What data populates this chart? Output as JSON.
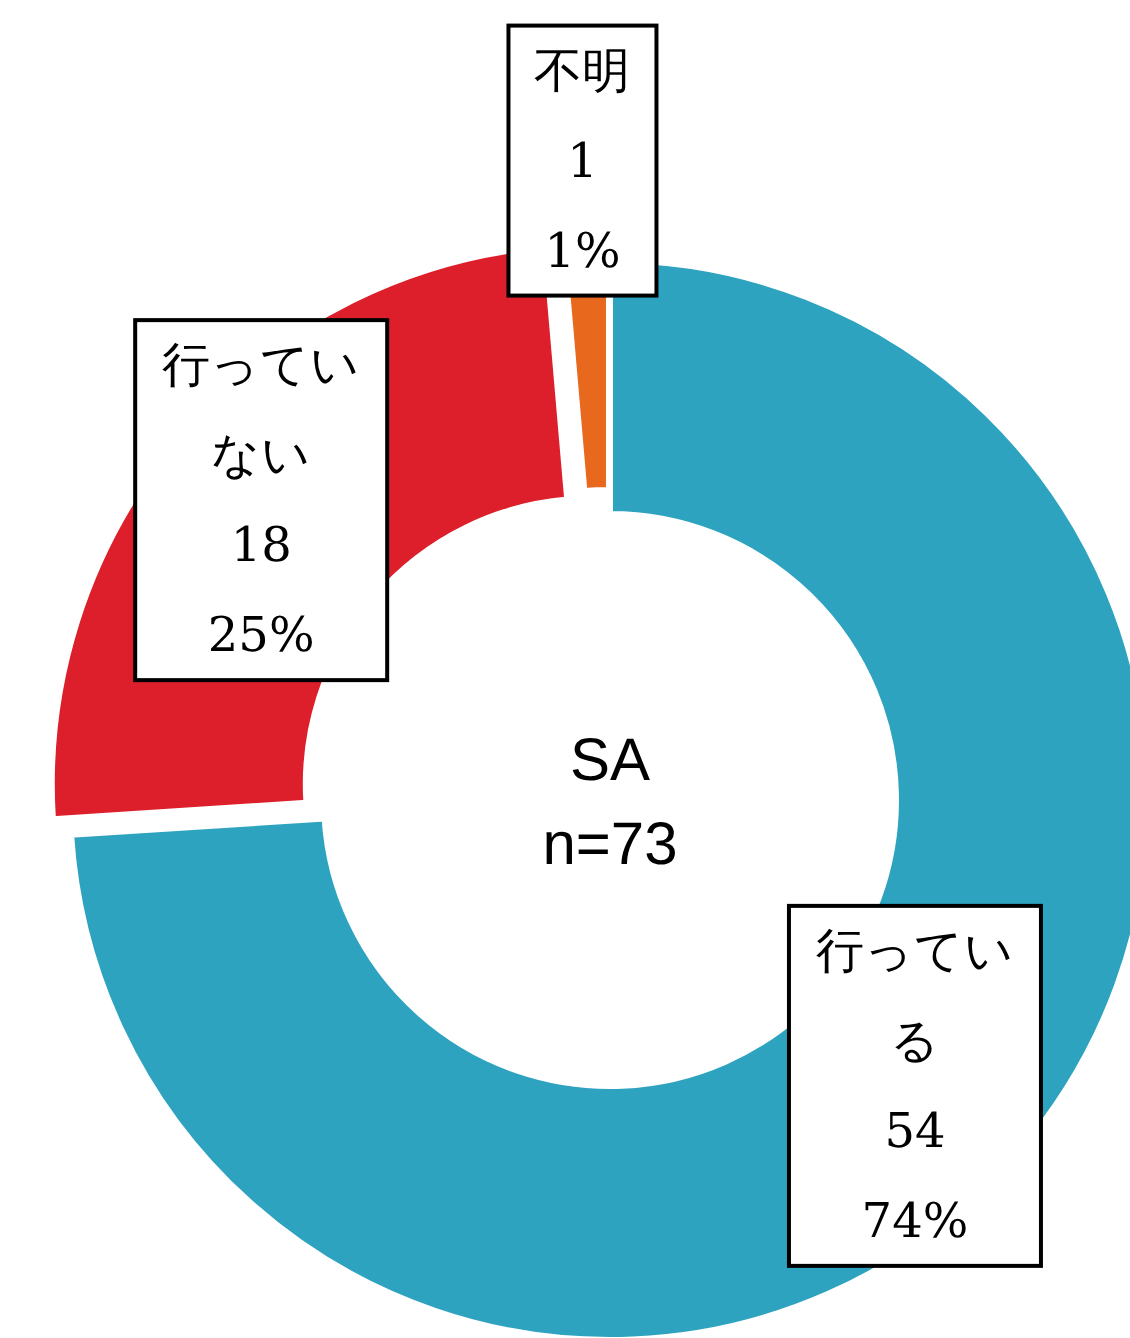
{
  "chart_data": {
    "type": "donut",
    "title": "SA",
    "subtitle": "n=73",
    "categories": [
      "行っている",
      "行っていない",
      "不明"
    ],
    "values": [
      54,
      18,
      1
    ],
    "colors": [
      "#2ea3c0",
      "#dc1f2a",
      "#e8681e"
    ],
    "data_labels": true,
    "annotations": [
      {
        "text": "74%",
        "x": "行っている"
      },
      {
        "text": "25%",
        "x": "行っていない"
      },
      {
        "text": "1%",
        "x": "不明"
      }
    ]
  }
}
